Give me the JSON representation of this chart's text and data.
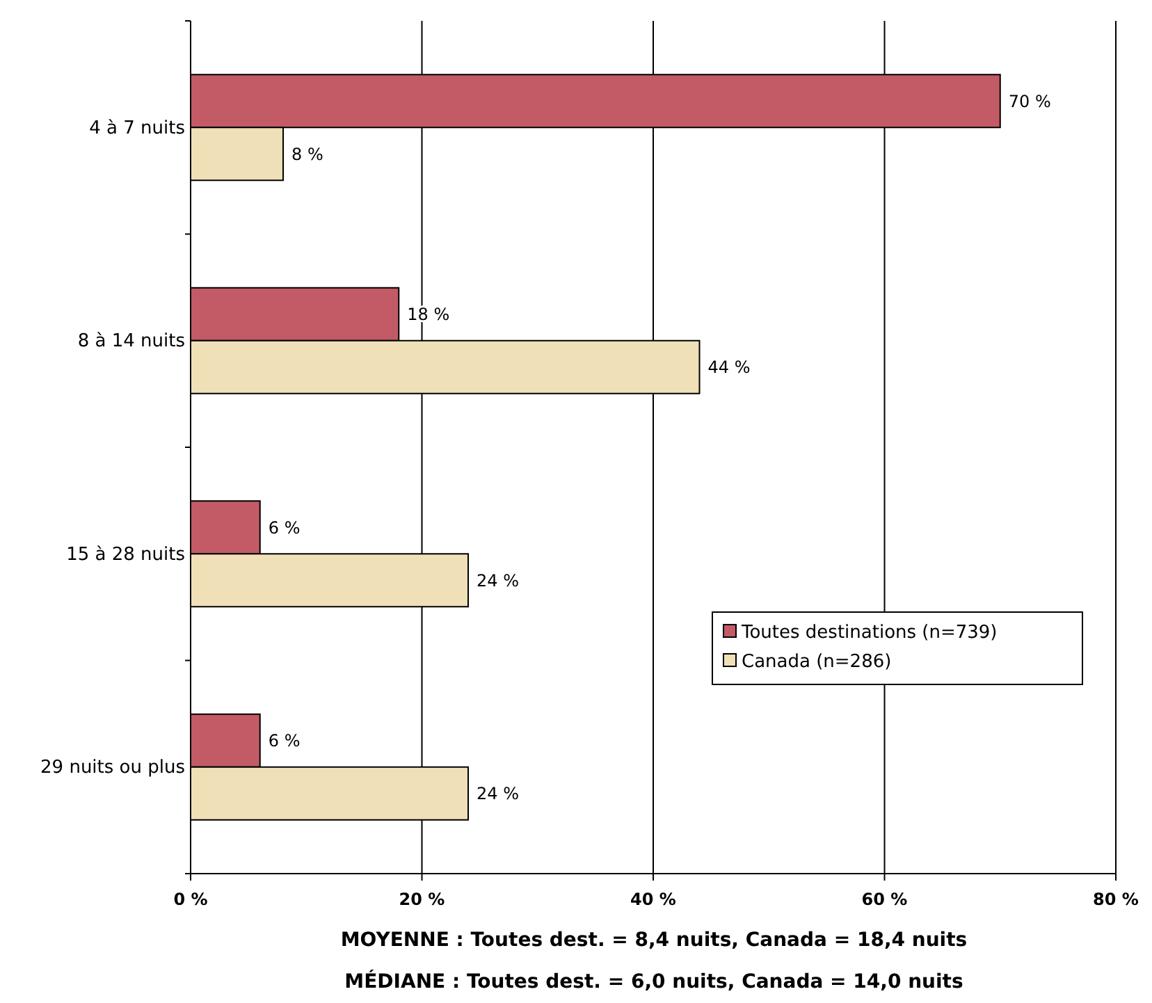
{
  "chart_data": {
    "type": "bar",
    "orientation": "horizontal",
    "categories": [
      "4 à 7 nuits",
      "8 à 14 nuits",
      "15 à 28 nuits",
      "29 nuits ou plus"
    ],
    "series": [
      {
        "name": "Toutes destinations (n=739)",
        "color": "#c25b66",
        "values": [
          70,
          18,
          6,
          6
        ],
        "value_labels": [
          "70 %",
          "18 %",
          "6 %",
          "6 %"
        ]
      },
      {
        "name": "Canada (n=286)",
        "color": "#efe0b8",
        "values": [
          8,
          44,
          24,
          24
        ],
        "value_labels": [
          "8 %",
          "44 %",
          "24 %",
          "24 %"
        ]
      }
    ],
    "xlim": [
      0,
      80
    ],
    "xticks": [
      {
        "value": 0,
        "label": "0 %"
      },
      {
        "value": 20,
        "label": "20 %"
      },
      {
        "value": 40,
        "label": "40 %"
      },
      {
        "value": 60,
        "label": "60 %"
      },
      {
        "value": 80,
        "label": "80 %"
      }
    ],
    "grid": "x",
    "legend": "bottom right",
    "annotations": [
      "MOYENNE :  Toutes dest. = 8,4 nuits, Canada = 18,4 nuits",
      "MÉDIANE :  Toutes dest. = 6,0 nuits, Canada  = 14,0 nuits"
    ]
  }
}
